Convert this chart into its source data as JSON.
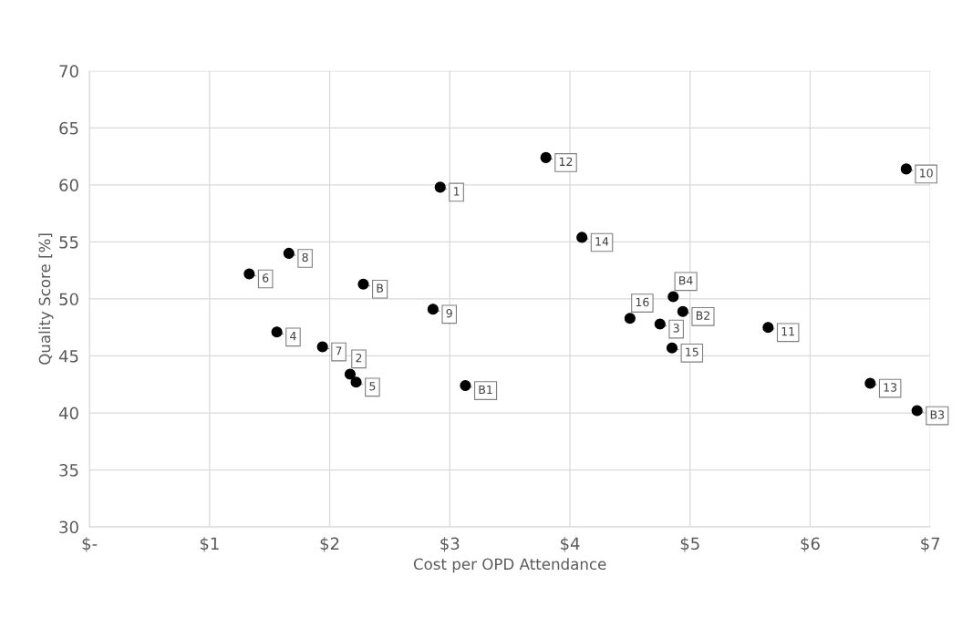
{
  "chart_data": {
    "type": "scatter",
    "xlabel": "Cost per OPD Attendance",
    "ylabel": "Quality Score [%]",
    "x": [
      2.92,
      1.66,
      1.33,
      2.28,
      2.86,
      1.56,
      1.94,
      2.17,
      2.22,
      3.13,
      3.8,
      6.8,
      4.1,
      4.86,
      4.94,
      4.5,
      4.75,
      4.85,
      5.65,
      6.5,
      6.89
    ],
    "series": [
      {
        "color": "#000000",
        "values": [
          59.8,
          54.0,
          52.2,
          51.3,
          49.1,
          47.1,
          45.8,
          43.4,
          42.7,
          42.4,
          62.4,
          61.4,
          55.4,
          50.2,
          48.9,
          48.3,
          47.8,
          45.7,
          47.5,
          42.6,
          40.2
        ]
      }
    ],
    "annotations": [
      {
        "text": "1",
        "x": 2.92,
        "y": 59.8
      },
      {
        "text": "8",
        "x": 1.66,
        "y": 54.0
      },
      {
        "text": "6",
        "x": 1.33,
        "y": 52.2
      },
      {
        "text": "B",
        "x": 2.28,
        "y": 51.3
      },
      {
        "text": "9",
        "x": 2.86,
        "y": 49.1
      },
      {
        "text": "4",
        "x": 1.56,
        "y": 47.1
      },
      {
        "text": "7",
        "x": 1.94,
        "y": 45.8
      },
      {
        "text": "2",
        "x": 2.17,
        "y": 43.4
      },
      {
        "text": "5",
        "x": 2.22,
        "y": 42.7
      },
      {
        "text": "B1",
        "x": 3.13,
        "y": 42.4
      },
      {
        "text": "12",
        "x": 3.8,
        "y": 62.4
      },
      {
        "text": "10",
        "x": 6.8,
        "y": 61.4
      },
      {
        "text": "14",
        "x": 4.1,
        "y": 55.4
      },
      {
        "text": "B4",
        "x": 4.86,
        "y": 50.2
      },
      {
        "text": "B2",
        "x": 4.94,
        "y": 48.9
      },
      {
        "text": "16",
        "x": 4.5,
        "y": 48.3
      },
      {
        "text": "3",
        "x": 4.75,
        "y": 47.8
      },
      {
        "text": "15",
        "x": 4.85,
        "y": 45.7
      },
      {
        "text": "11",
        "x": 5.65,
        "y": 47.5
      },
      {
        "text": "13",
        "x": 6.5,
        "y": 42.6
      },
      {
        "text": "B3",
        "x": 6.89,
        "y": 40.2
      }
    ],
    "xlim": [
      0,
      7
    ],
    "ylim": [
      30,
      70
    ],
    "xticks": [
      {
        "value": 0,
        "label": "$-"
      },
      {
        "value": 1,
        "label": "$1"
      },
      {
        "value": 2,
        "label": "$2"
      },
      {
        "value": 3,
        "label": "$3"
      },
      {
        "value": 4,
        "label": "$4"
      },
      {
        "value": 5,
        "label": "$5"
      },
      {
        "value": 6,
        "label": "$6"
      },
      {
        "value": 7,
        "label": "$7"
      }
    ],
    "yticks": [
      30,
      35,
      40,
      45,
      50,
      55,
      60,
      65,
      70
    ],
    "grid": true,
    "marker": "circle"
  }
}
